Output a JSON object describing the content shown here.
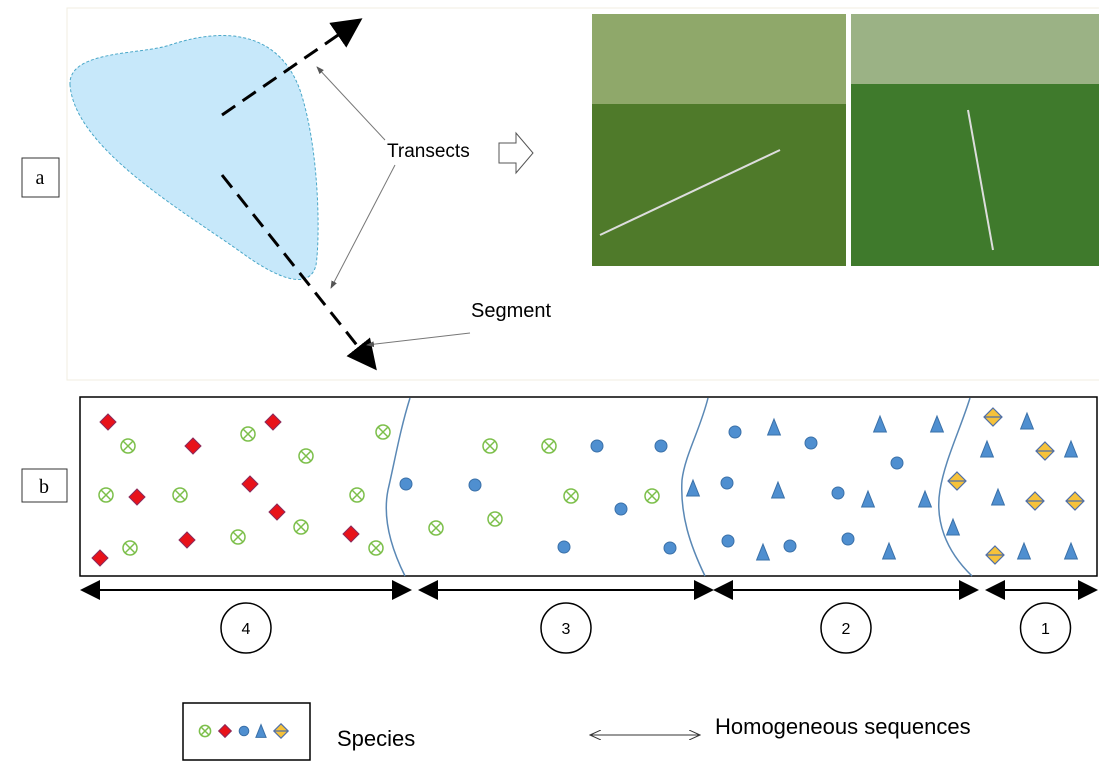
{
  "panel_a": {
    "label": "a",
    "transects_label": "Transects",
    "segment_label": "Segment"
  },
  "panel_b": {
    "label": "b",
    "sequences": [
      "4",
      "3",
      "2",
      "1"
    ]
  },
  "legend": {
    "species_label": "Species",
    "sequences_label": "Homogeneous sequences"
  }
}
